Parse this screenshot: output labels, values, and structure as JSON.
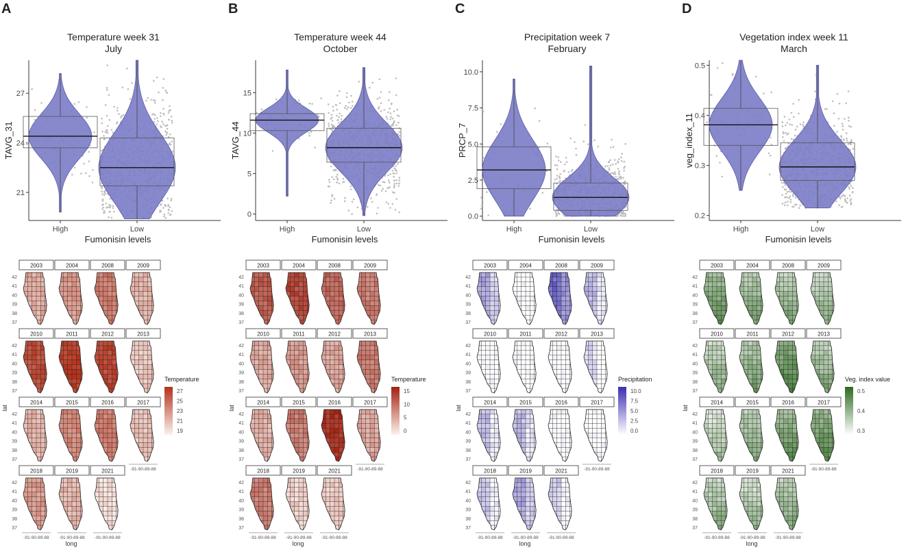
{
  "panels": [
    {
      "letter": "A",
      "title1": "Temperature week 31",
      "title2": "July",
      "chart_data": {
        "type": "violin",
        "xlabel": "Fumonisin levels",
        "ylabel": "TAVG_31",
        "categories": [
          "High",
          "Low"
        ],
        "ylim": [
          19.3,
          29
        ],
        "yticks": [
          21,
          24,
          27
        ],
        "tick_labels": [
          "21",
          "24",
          "27"
        ],
        "boxes": [
          {
            "category": "High",
            "q1": 23.7,
            "median": 24.4,
            "q3": 25.6,
            "min": 19.8,
            "max": 28.2
          },
          {
            "category": "Low",
            "q1": 21.4,
            "median": 22.5,
            "q3": 24.3,
            "min": 19.4,
            "max": 29
          }
        ]
      },
      "legend": {
        "title": "Temperature",
        "ticks": [
          "27",
          "25",
          "23",
          "21",
          "19"
        ],
        "color_low": "#fbf1ec",
        "color_high": "#b3321c"
      },
      "map_years": [
        "2003",
        "2004",
        "2008",
        "2009",
        "2010",
        "2011",
        "2012",
        "2013",
        "2014",
        "2015",
        "2016",
        "2017",
        "2018",
        "2019",
        "2021"
      ],
      "map_intensity": [
        0.35,
        0.45,
        0.6,
        0.3,
        0.85,
        0.92,
        0.88,
        0.22,
        0.3,
        0.55,
        0.6,
        0.25,
        0.45,
        0.3,
        0.1
      ],
      "lat_ticks": [
        "42",
        "41",
        "40",
        "39",
        "38",
        "37"
      ],
      "long_ticks": "-91-90-89-88",
      "lat_label": "lat",
      "long_label": "long",
      "colors": {
        "violin": "#7b7bc7",
        "low": "#fbf1ec",
        "high": "#b3321c"
      }
    },
    {
      "letter": "B",
      "title1": "Temperature week 44",
      "title2": "October",
      "chart_data": {
        "type": "violin",
        "xlabel": "Fumonisin levels",
        "ylabel": "TAVG_44",
        "categories": [
          "High",
          "Low"
        ],
        "ylim": [
          -0.8,
          19
        ],
        "yticks": [
          0,
          5,
          10,
          15
        ],
        "tick_labels": [
          "0",
          "5",
          "10",
          "15"
        ],
        "boxes": [
          {
            "category": "High",
            "q1": 10.3,
            "median": 11.6,
            "q3": 12.4,
            "min": 2.2,
            "max": 17.8
          },
          {
            "category": "Low",
            "q1": 6.4,
            "median": 8.2,
            "q3": 10.6,
            "min": -0.2,
            "max": 18.1
          }
        ]
      },
      "legend": {
        "title": "Temperature",
        "ticks": [
          "15",
          "10",
          "5",
          "0"
        ],
        "color_low": "#fdf1ec",
        "color_high": "#a3200f"
      },
      "map_years": [
        "2003",
        "2004",
        "2008",
        "2009",
        "2010",
        "2011",
        "2012",
        "2013",
        "2014",
        "2015",
        "2016",
        "2017",
        "2018",
        "2019",
        "2021"
      ],
      "map_intensity": [
        0.7,
        0.8,
        0.65,
        0.55,
        0.35,
        0.4,
        0.35,
        0.55,
        0.3,
        0.55,
        0.9,
        0.35,
        0.55,
        0.15,
        0.2
      ],
      "lat_ticks": [
        "42",
        "41",
        "40",
        "39",
        "38",
        "37"
      ],
      "long_ticks": "-91-90-89-88",
      "lat_label": "lat",
      "long_label": "long",
      "colors": {
        "violin": "#7b7bc7",
        "low": "#fdf1ec",
        "high": "#a3200f"
      }
    },
    {
      "letter": "C",
      "title1": "Precipitation week 7",
      "title2": "February",
      "chart_data": {
        "type": "violin",
        "xlabel": "Fumonisin levels",
        "ylabel": "PRCP_7",
        "categories": [
          "High",
          "Low"
        ],
        "ylim": [
          -0.3,
          10.8
        ],
        "yticks": [
          0,
          2.5,
          5,
          7.5,
          10
        ],
        "tick_labels": [
          "0.0",
          "2.5",
          "5.0",
          "7.5",
          "10.0"
        ],
        "boxes": [
          {
            "category": "High",
            "q1": 1.9,
            "median": 3.2,
            "q3": 4.8,
            "min": 0,
            "max": 9.5
          },
          {
            "category": "Low",
            "q1": 0.4,
            "median": 1.3,
            "q3": 2.3,
            "min": 0,
            "max": 10.4
          }
        ]
      },
      "legend": {
        "title": "Precipitation",
        "ticks": [
          "10.0",
          "7.5",
          "5.0",
          "2.5",
          "0.0"
        ],
        "color_low": "#ffffff",
        "color_high": "#3a2fb0"
      },
      "map_years": [
        "2003",
        "2004",
        "2008",
        "2009",
        "2010",
        "2011",
        "2012",
        "2013",
        "2014",
        "2015",
        "2016",
        "2017",
        "2018",
        "2019",
        "2021"
      ],
      "map_intensity": [
        0.3,
        0.0,
        0.6,
        0.2,
        0.0,
        0.0,
        0.0,
        0.05,
        0.2,
        0.2,
        0.0,
        0.0,
        0.15,
        0.3,
        0.12
      ],
      "lat_ticks": [
        "42",
        "41",
        "40",
        "39",
        "38",
        "37"
      ],
      "long_ticks": "-91-90-89-88",
      "lat_label": "lat",
      "long_label": "long",
      "colors": {
        "violin": "#7b7bc7",
        "low": "#ffffff",
        "high": "#3a2fb0"
      }
    },
    {
      "letter": "D",
      "title1": "Vegetation index week 11",
      "title2": "March",
      "chart_data": {
        "type": "violin",
        "xlabel": "Fumonisin levels",
        "ylabel": "veg_index_11",
        "categories": [
          "High",
          "Low"
        ],
        "ylim": [
          0.19,
          0.51
        ],
        "yticks": [
          0.2,
          0.3,
          0.4,
          0.5
        ],
        "tick_labels": [
          "0.2",
          "0.3",
          "0.4",
          "0.5"
        ],
        "boxes": [
          {
            "category": "High",
            "q1": 0.34,
            "median": 0.381,
            "q3": 0.414,
            "min": 0.25,
            "max": 0.51
          },
          {
            "category": "Low",
            "q1": 0.27,
            "median": 0.297,
            "q3": 0.345,
            "min": 0.215,
            "max": 0.5
          }
        ]
      },
      "legend": {
        "title": "Veg. index value",
        "ticks": [
          "0.5",
          "0.4",
          "0.3"
        ],
        "color_low": "#ffffff",
        "color_high": "#2d6a1f"
      },
      "map_years": [
        "2003",
        "2004",
        "2008",
        "2009",
        "2010",
        "2011",
        "2012",
        "2013",
        "2014",
        "2015",
        "2016",
        "2017",
        "2018",
        "2019",
        "2021"
      ],
      "map_intensity": [
        0.55,
        0.45,
        0.4,
        0.35,
        0.35,
        0.45,
        0.65,
        0.4,
        0.25,
        0.4,
        0.55,
        0.6,
        0.35,
        0.3,
        0.4
      ],
      "lat_ticks": [
        "42",
        "41",
        "40",
        "39",
        "38",
        "37"
      ],
      "long_ticks": "-91-90-89-88",
      "lat_label": "lat",
      "long_label": "long",
      "colors": {
        "violin": "#7b7bc7",
        "low": "#ffffff",
        "high": "#2d6a1f"
      }
    }
  ]
}
